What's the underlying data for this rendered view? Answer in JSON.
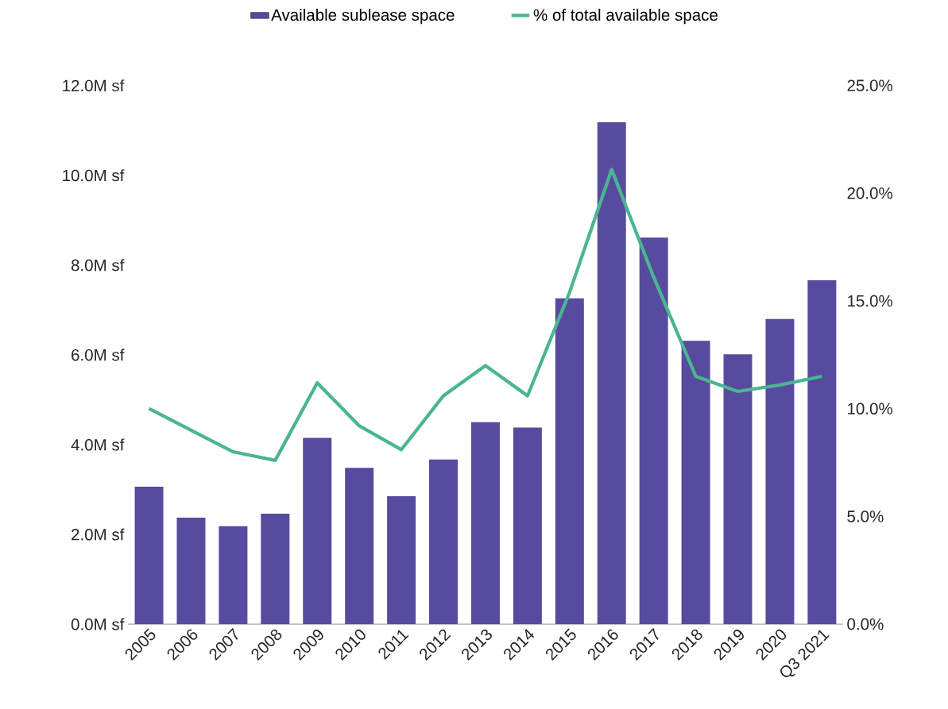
{
  "chart_data": {
    "type": "bar",
    "categories": [
      "2005",
      "2006",
      "2007",
      "2008",
      "2009",
      "2010",
      "2011",
      "2012",
      "2013",
      "2014",
      "2015",
      "2016",
      "2017",
      "2018",
      "2019",
      "2020",
      "Q3 2021"
    ],
    "series": [
      {
        "name": "Available sublease space",
        "color": "#574b9f",
        "values": [
          3.06,
          2.37,
          2.18,
          2.46,
          4.15,
          3.48,
          2.85,
          3.67,
          4.5,
          4.38,
          7.26,
          11.18,
          8.61,
          6.31,
          6.01,
          6.8,
          7.66
        ]
      },
      {
        "name": "% of total available space",
        "type": "line",
        "axis": "y2",
        "color": "#4bb591",
        "values": [
          10.0,
          9.0,
          8.0,
          7.6,
          11.2,
          9.2,
          8.1,
          10.6,
          12.0,
          10.6,
          15.4,
          21.1,
          16.1,
          11.5,
          10.8,
          11.1,
          11.5
        ]
      }
    ],
    "ylim": [
      0,
      12
    ],
    "yticks": [
      {
        "value": 0,
        "label": "0.0M sf"
      },
      {
        "value": 2,
        "label": "2.0M sf"
      },
      {
        "value": 4,
        "label": "4.0M sf"
      },
      {
        "value": 6,
        "label": "6.0M sf"
      },
      {
        "value": 8,
        "label": "8.0M sf"
      },
      {
        "value": 10,
        "label": "10.0M sf"
      },
      {
        "value": 12,
        "label": "12.0M sf"
      }
    ],
    "y2lim": [
      0,
      25
    ],
    "y2ticks": [
      {
        "value": 0,
        "label": "0.0%"
      },
      {
        "value": 5,
        "label": "5.0%"
      },
      {
        "value": 10,
        "label": "10.0%"
      },
      {
        "value": 15,
        "label": "15.0%"
      },
      {
        "value": 20,
        "label": "20.0%"
      },
      {
        "value": 25,
        "label": "25.0%"
      }
    ],
    "grid": false,
    "legend": "top",
    "marker": "none"
  }
}
